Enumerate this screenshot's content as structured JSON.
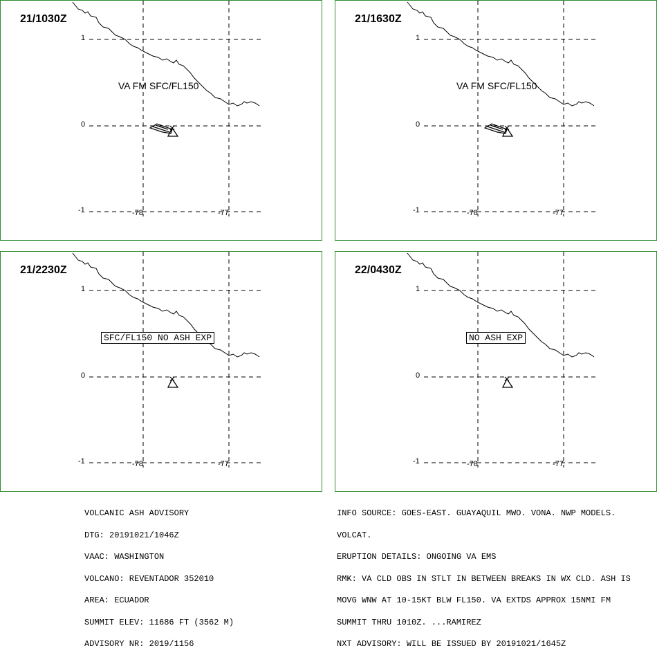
{
  "panels": [
    {
      "time": "21/1030Z",
      "lat_labels": [
        "1",
        "0",
        "-1"
      ],
      "lon_labels": [
        "-78",
        "-77"
      ],
      "forecast_text": "VA FM SFC/FL150",
      "forecast_style": "plain",
      "ash_cloud_shown": true
    },
    {
      "time": "21/1630Z",
      "lat_labels": [
        "1",
        "0",
        "-1"
      ],
      "lon_labels": [
        "-78",
        "-77"
      ],
      "forecast_text": "VA FM SFC/FL150",
      "forecast_style": "plain",
      "ash_cloud_shown": true
    },
    {
      "time": "21/2230Z",
      "lat_labels": [
        "1",
        "0",
        "-1"
      ],
      "lon_labels": [
        "-78",
        "-77"
      ],
      "forecast_text": "SFC/FL150 NO ASH EXP",
      "forecast_style": "boxed",
      "ash_cloud_shown": false
    },
    {
      "time": "22/0430Z",
      "lat_labels": [
        "1",
        "0",
        "-1"
      ],
      "lon_labels": [
        "-78",
        "-77"
      ],
      "forecast_text": "NO ASH EXP",
      "forecast_style": "boxed",
      "ash_cloud_shown": false
    }
  ],
  "advisory_left": [
    "VOLCANIC ASH ADVISORY",
    "DTG: 20191021/1046Z",
    "VAAC: WASHINGTON",
    "VOLCANO: REVENTADOR 352010",
    "AREA: ECUADOR",
    "SUMMIT ELEV: 11686 FT (3562 M)",
    "ADVISORY NR: 2019/1156"
  ],
  "advisory_right": [
    "INFO SOURCE: GOES-EAST. GUAYAQUIL MWO. VONA. NWP MODELS.",
    "VOLCAT.",
    "ERUPTION DETAILS: ONGOING VA EMS",
    "RMK: VA CLD OBS IN STLT IN BETWEEN BREAKS IN WX CLD. ASH IS",
    "MOVG WNW AT 10-15KT BLW FL150. VA EXTDS APPROX 15NMI FM",
    "SUMMIT THRU 1010Z. ...RAMIREZ",
    "NXT ADVISORY: WILL BE ISSUED BY 20191021/1645Z"
  ],
  "colors": {
    "panel_border": "#2e8b2e",
    "lines": "#000000"
  },
  "icons": {
    "volcano": "volcano-triangle-icon",
    "ash_cloud": "ash-polygon"
  }
}
